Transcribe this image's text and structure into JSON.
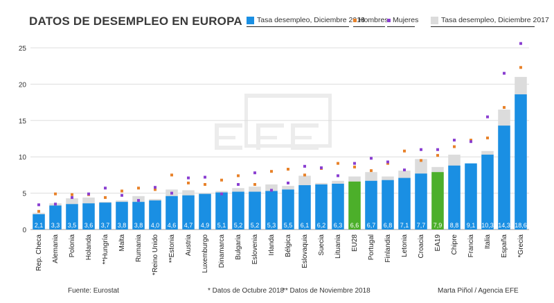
{
  "chart_data": {
    "type": "bar",
    "title": "DATOS DE DESEMPLEO EN EUROPA",
    "legend": {
      "rate_2018": "Tasa desempleo, Diciembre 2018",
      "men": "Hombres",
      "women": "Mujeres",
      "rate_2017": "Tasa desempleo, Diciembre 2017"
    },
    "colors": {
      "rate_2018": "#1a8fe3",
      "highlight": "#4caf2a",
      "rate_2017": "#dcdcdc",
      "men": "#e8822a",
      "women": "#8a3fd1"
    },
    "ylim": [
      0,
      25
    ],
    "yticks": [
      0,
      5,
      10,
      15,
      20,
      25
    ],
    "categories": [
      "Rep. Checa",
      "Alemania",
      "Polonia",
      "Holanda",
      "**Hungría",
      "Malta",
      "Rumania",
      "*Reino Unido",
      "**Estonia",
      "Austria",
      "Luxemburgo",
      "Dinamarca",
      "Bulgaria",
      "Eslovenia",
      "Irlanda",
      "Bélgica",
      "Eslovaquia",
      "Suecia",
      "Lituania",
      "EU28",
      "Portugal",
      "Finlandia",
      "Letonia",
      "Croacia",
      "EA19",
      "Chipre",
      "Francia",
      "Italia",
      "España",
      "*Grecia"
    ],
    "value_labels": [
      "2,1",
      "3,3",
      "3,5",
      "3,6",
      "3,7",
      "3,8",
      "3,8",
      "4,0",
      "4,6",
      "4,7",
      "4,9",
      "5,1",
      "5,2",
      "5,2",
      "5,3",
      "5,5",
      "6,1",
      "6,2",
      "6,3",
      "6,6",
      "6,7",
      "6,8",
      "7,1",
      "7,7",
      "7,9",
      "8,8",
      "9,1",
      "10,3",
      "14,3",
      "18,6"
    ],
    "series": [
      {
        "name": "Tasa desempleo, Diciembre 2018",
        "values": [
          2.1,
          3.3,
          3.5,
          3.6,
          3.7,
          3.8,
          3.8,
          4.0,
          4.6,
          4.7,
          4.9,
          5.1,
          5.2,
          5.2,
          5.3,
          5.5,
          6.1,
          6.2,
          6.3,
          6.6,
          6.7,
          6.8,
          7.1,
          7.7,
          7.9,
          8.8,
          9.1,
          10.3,
          14.3,
          18.6
        ]
      },
      {
        "name": "Tasa desempleo, Diciembre 2017",
        "values": [
          2.3,
          3.6,
          4.3,
          4.4,
          3.8,
          4.0,
          4.6,
          4.2,
          5.5,
          5.4,
          5.0,
          5.3,
          5.7,
          5.9,
          6.2,
          6.0,
          7.4,
          6.4,
          6.7,
          7.3,
          7.9,
          7.3,
          8.1,
          9.7,
          8.6,
          10.3,
          8.9,
          10.8,
          16.5,
          21.0
        ]
      },
      {
        "name": "Hombres",
        "values": [
          2.5,
          4.9,
          4.8,
          4.8,
          4.4,
          5.3,
          5.7,
          5.5,
          7.5,
          6.4,
          6.2,
          6.8,
          7.4,
          6.2,
          8.0,
          8.3,
          7.5,
          8.4,
          9.1,
          8.6,
          8.1,
          9.1,
          10.8,
          9.5,
          10.2,
          11.4,
          12.3,
          12.6,
          16.8,
          22.3
        ]
      },
      {
        "name": "Mujeres",
        "values": [
          3.4,
          3.5,
          4.4,
          4.9,
          5.7,
          4.7,
          4.0,
          5.8,
          5.0,
          7.1,
          7.2,
          4.9,
          6.2,
          7.8,
          5.4,
          6.4,
          8.7,
          8.5,
          7.4,
          9.1,
          9.8,
          9.3,
          8.2,
          11.0,
          11.0,
          12.3,
          12.1,
          15.5,
          21.5,
          25.6
        ]
      }
    ],
    "highlighted": [
      "EU28",
      "EA19"
    ]
  },
  "footer": {
    "source": "Fuente: Eurostat",
    "note_october": "* Datos de Octubre 2018",
    "note_november": "** Datos de Noviembre 2018",
    "credit": "Marta Piñol / Agencia EFE"
  }
}
